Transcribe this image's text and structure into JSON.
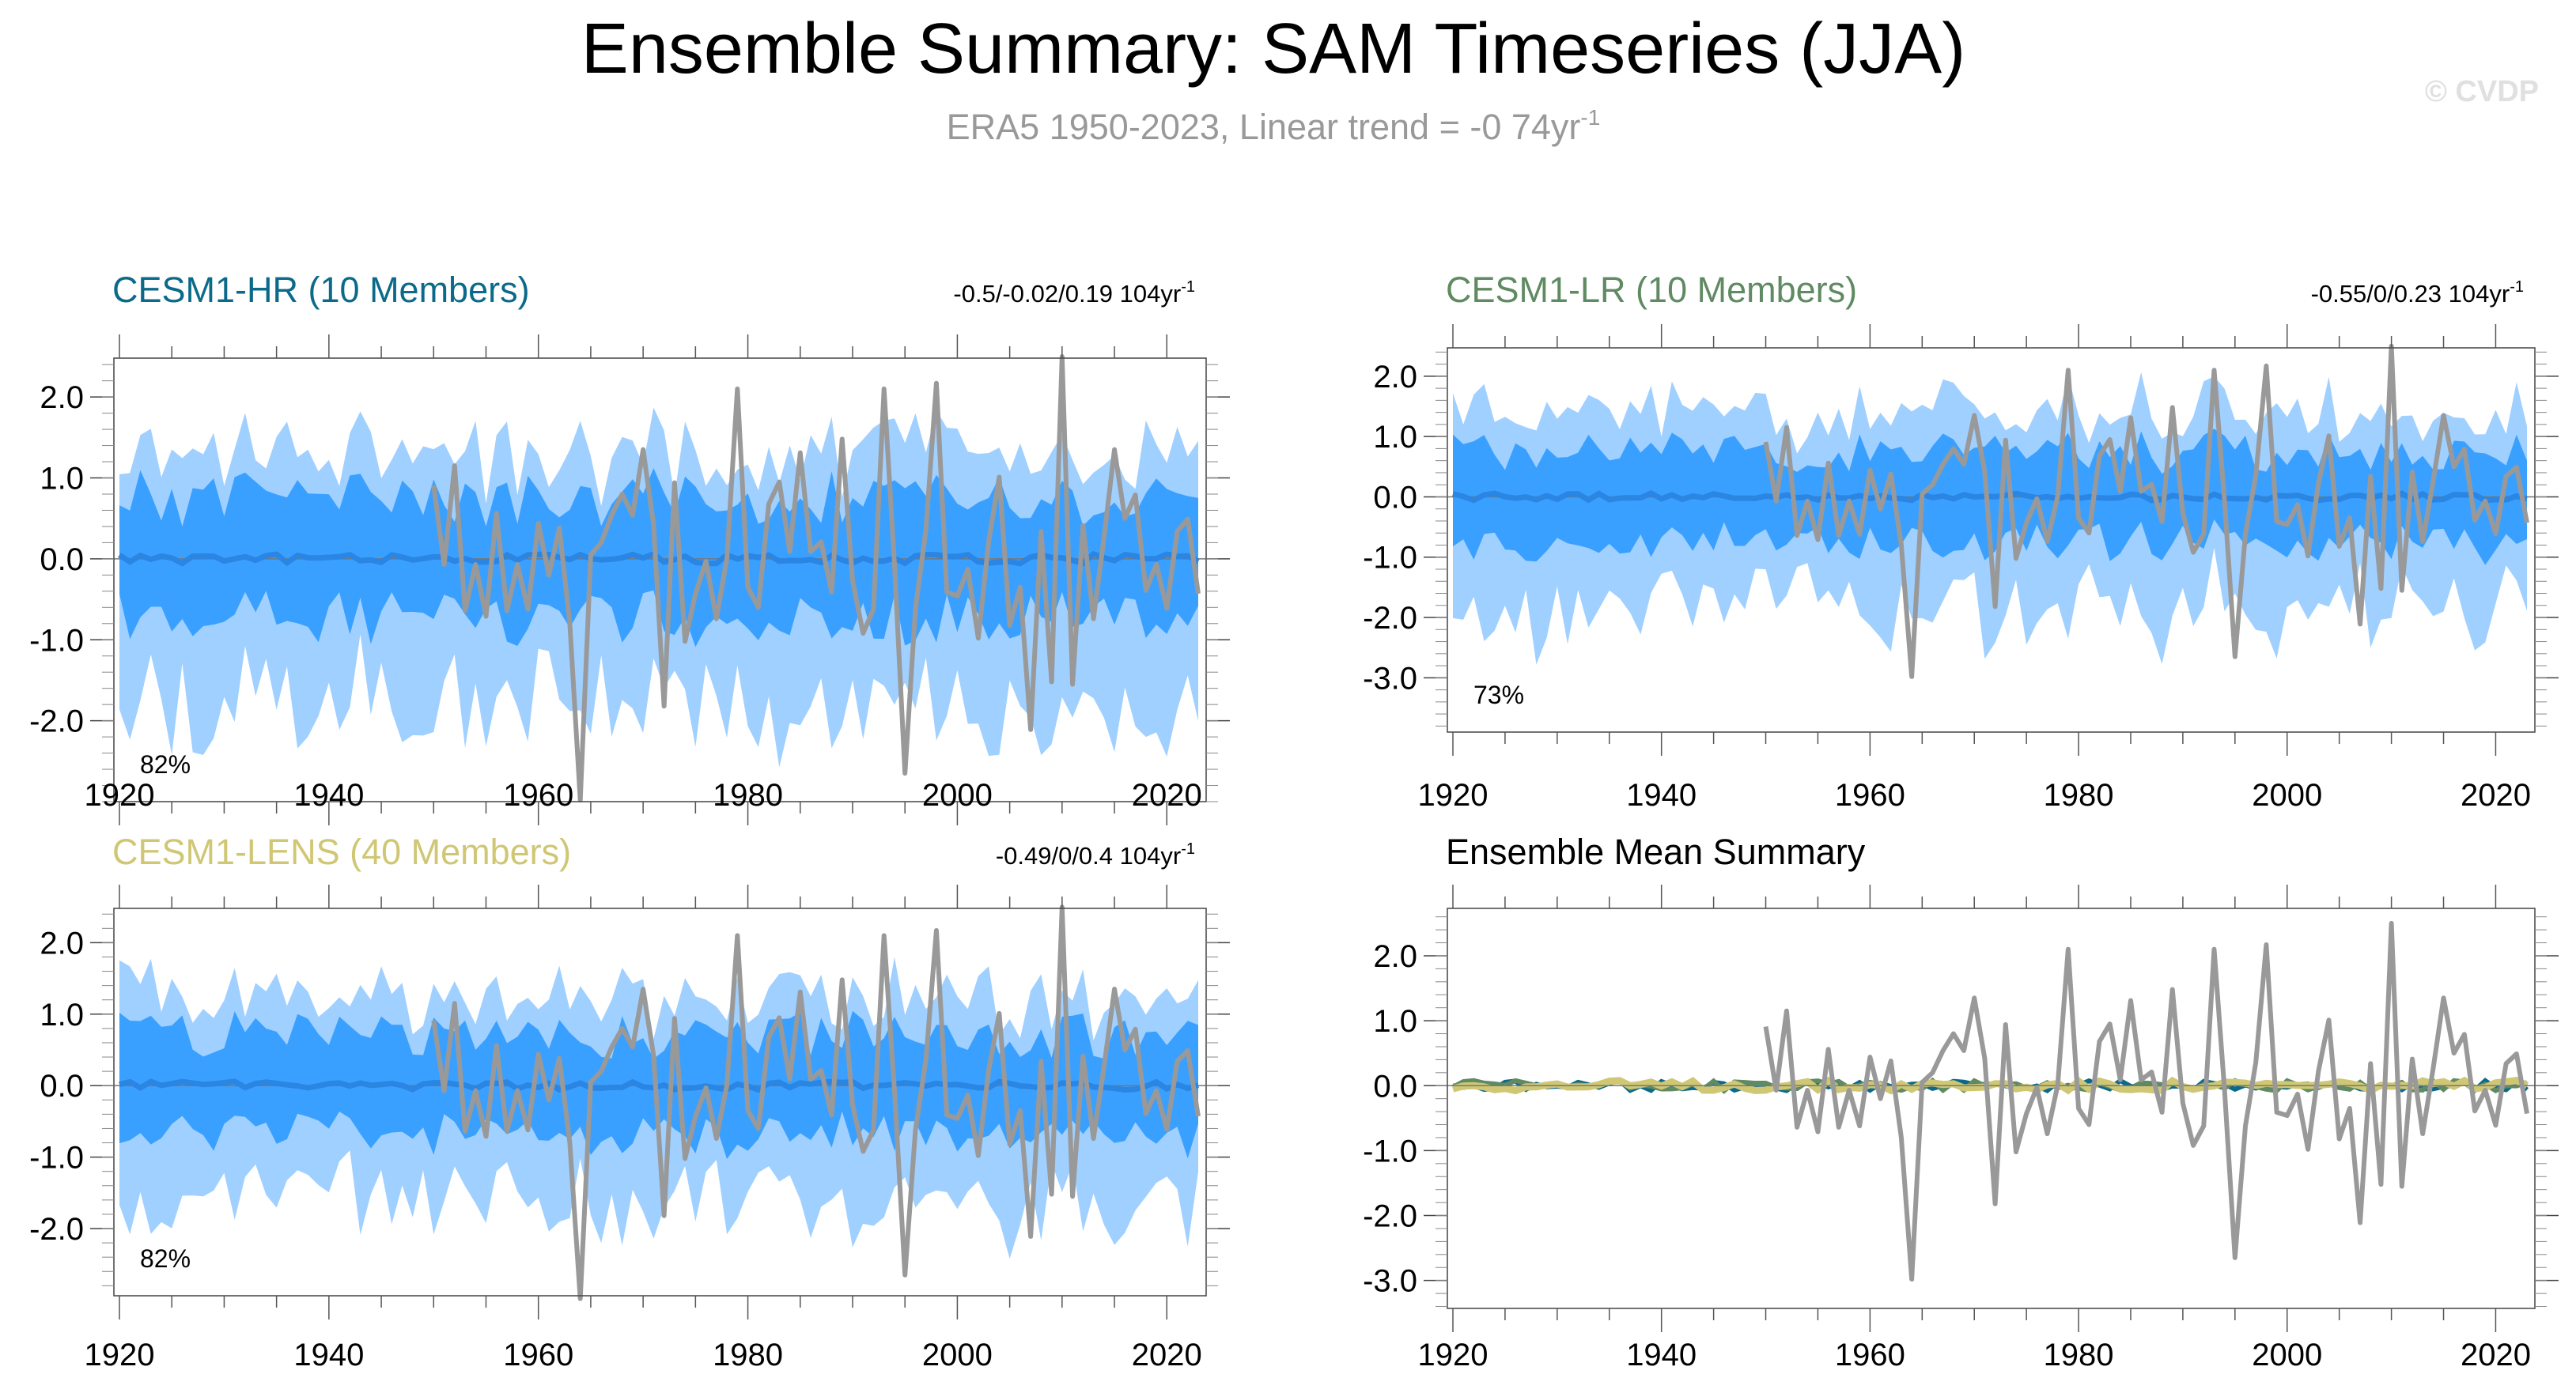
{
  "title": "Ensemble Summary: SAM Timeseries (JJA)",
  "subtitle_main": "ERA5 1950-2023, Linear trend = -0 74yr",
  "subtitle_sup": "-1",
  "watermark": "© CVDP",
  "colors": {
    "hr": "#0b6a8a",
    "lr": "#5f8a62",
    "lens": "#cfc774",
    "band_outer": "#a0d0ff",
    "band_inner": "#3aa0ff",
    "ens_mean": "#2b85e2",
    "obs": "#999999"
  },
  "chart_data": [
    {
      "type": "area",
      "id": "hr",
      "title": "CESM1-HR (10 Members)",
      "trend_label": "-0.5/-0.02/0.19 104yr",
      "trend_sup": "-1",
      "percent_label": "82%",
      "ylim": [
        -3.0,
        2.48
      ],
      "yticks": [
        2.0,
        1.0,
        0.0,
        -1.0,
        -2.0
      ],
      "ytick_labels": [
        "2.0",
        "1.0",
        "0.0",
        "-1.0",
        "-2.0"
      ],
      "xlim": [
        1920,
        2023
      ],
      "xticks": [
        1920,
        1940,
        1960,
        1980,
        2000,
        2020
      ],
      "xtick_labels": [
        "1920",
        "1940",
        "1960",
        "1980",
        "2000",
        "2020"
      ],
      "band_inner_halfwidth": 0.75,
      "band_outer_halfwidth": 1.45,
      "seed": 11
    },
    {
      "type": "area",
      "id": "lr",
      "title": "CESM1-LR (10 Members)",
      "trend_label": "-0.55/0/0.23 104yr",
      "trend_sup": "-1",
      "percent_label": "73%",
      "ylim": [
        -3.9,
        2.47
      ],
      "yticks": [
        2.0,
        1.0,
        0.0,
        -1.0,
        -2.0,
        -3.0
      ],
      "ytick_labels": [
        "2.0",
        "1.0",
        "0.0",
        "-1.0",
        "-2.0",
        "-3.0"
      ],
      "xlim": [
        1920,
        2023
      ],
      "xticks": [
        1920,
        1940,
        1960,
        1980,
        2000,
        2020
      ],
      "xtick_labels": [
        "1920",
        "1940",
        "1960",
        "1980",
        "2000",
        "2020"
      ],
      "band_inner_halfwidth": 0.75,
      "band_outer_halfwidth": 1.55,
      "seed": 23
    },
    {
      "type": "area",
      "id": "lens",
      "title": "CESM1-LENS (40 Members)",
      "trend_label": "-0.49/0/0.4 104yr",
      "trend_sup": "-1",
      "percent_label": "82%",
      "ylim": [
        -2.94,
        2.48
      ],
      "yticks": [
        2.0,
        1.0,
        0.0,
        -1.0,
        -2.0
      ],
      "ytick_labels": [
        "2.0",
        "1.0",
        "0.0",
        "-1.0",
        "-2.0"
      ],
      "xlim": [
        1920,
        2023
      ],
      "xticks": [
        1920,
        1940,
        1960,
        1980,
        2000,
        2020
      ],
      "xtick_labels": [
        "1920",
        "1940",
        "1960",
        "1980",
        "2000",
        "2020"
      ],
      "band_inner_halfwidth": 0.7,
      "band_outer_halfwidth": 1.3,
      "seed": 37
    },
    {
      "type": "line",
      "id": "summary",
      "title": "Ensemble Mean Summary",
      "ylim": [
        -3.43,
        2.73
      ],
      "yticks": [
        2.0,
        1.0,
        0.0,
        -1.0,
        -2.0,
        -3.0
      ],
      "ytick_labels": [
        "2.0",
        "1.0",
        "0.0",
        "-1.0",
        "-2.0",
        "-3.0"
      ],
      "xlim": [
        1920,
        2023
      ],
      "xticks": [
        1920,
        1940,
        1960,
        1980,
        2000,
        2020
      ],
      "xtick_labels": [
        "1920",
        "1940",
        "1960",
        "1980",
        "2000",
        "2020"
      ],
      "series": [
        {
          "name": "CESM1-HR mean",
          "color_key": "hr"
        },
        {
          "name": "CESM1-LR mean",
          "color_key": "lr"
        },
        {
          "name": "CESM1-LENS mean",
          "color_key": "lens"
        }
      ]
    }
  ],
  "obs": {
    "name": "ERA5",
    "start_year": 1950,
    "values": [
      0.91,
      -0.07,
      1.15,
      -0.64,
      -0.07,
      -0.71,
      0.56,
      -0.64,
      -0.07,
      -0.62,
      0.44,
      -0.2,
      0.38,
      -0.8,
      -2.98,
      0.05,
      0.2,
      0.54,
      0.8,
      0.54,
      1.35,
      0.42,
      -1.82,
      0.94,
      -1.02,
      -0.43,
      -0.03,
      -0.74,
      0.01,
      2.1,
      -0.35,
      -0.6,
      0.68,
      0.95,
      0.09,
      1.31,
      0.09,
      0.21,
      -0.41,
      1.48,
      -0.27,
      -0.92,
      -0.62,
      2.1,
      -0.07,
      -2.65,
      -0.62,
      0.36,
      2.17,
      -0.41,
      -0.46,
      -0.13,
      -0.98,
      0.22,
      1.01,
      -0.82,
      -0.35,
      -2.11,
      0.34,
      -1.52,
      2.5,
      -1.55,
      0.41,
      -0.74,
      0.26,
      1.35,
      0.5,
      0.79,
      -0.39,
      -0.07,
      -0.61,
      0.34,
      0.49,
      -0.43
    ]
  }
}
